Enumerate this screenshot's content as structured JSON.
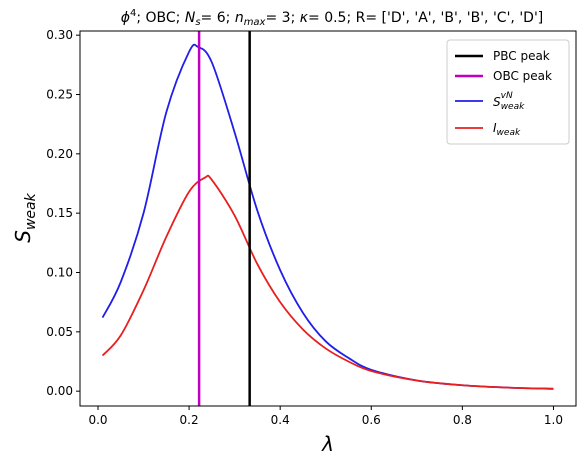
{
  "chart_data": {
    "type": "line",
    "title": {
      "phi": "ϕ",
      "phi_sup": "4",
      "seg1": "; OBC; ",
      "ns_main": "N",
      "ns_sub": "s",
      "seg2": "= 6; ",
      "nmax_main": "n",
      "nmax_sub": "max",
      "seg3": "= 3; ",
      "kappa": "κ",
      "seg4": "= 0.5; R= ['D', 'A', 'B', 'B', 'C', 'D']"
    },
    "xlabel": "λ",
    "ylabel": {
      "main": "S",
      "sub": "weak"
    },
    "xlim": [
      -0.0395,
      1.0495
    ],
    "ylim": [
      -0.0125,
      0.3035
    ],
    "xticks": [
      "0.0",
      "0.2",
      "0.4",
      "0.6",
      "0.8",
      "1.0"
    ],
    "yticks": [
      "0.00",
      "0.05",
      "0.10",
      "0.15",
      "0.20",
      "0.25",
      "0.30"
    ],
    "grid": false,
    "legend_position": "top-right",
    "vlines": [
      {
        "name": "PBC peak",
        "x": 0.333,
        "color": "#000000"
      },
      {
        "name": "OBC peak",
        "x": 0.222,
        "color": "#bf00bf"
      }
    ],
    "series": [
      {
        "name": {
          "main": "S",
          "sub": "weak",
          "sup": "vN"
        },
        "color": "#1f1fe8",
        "x": [
          0.01,
          0.05,
          0.1,
          0.15,
          0.2,
          0.22,
          0.25,
          0.3,
          0.35,
          0.4,
          0.45,
          0.5,
          0.55,
          0.6,
          0.7,
          0.8,
          0.9,
          1.0
        ],
        "y": [
          0.062,
          0.092,
          0.15,
          0.235,
          0.286,
          0.29,
          0.277,
          0.218,
          0.152,
          0.102,
          0.066,
          0.042,
          0.028,
          0.018,
          0.009,
          0.005,
          0.003,
          0.002
        ]
      },
      {
        "name": {
          "main": "I",
          "sub": "weak"
        },
        "color": "#e81f1f",
        "x": [
          0.01,
          0.05,
          0.1,
          0.15,
          0.2,
          0.235,
          0.25,
          0.3,
          0.35,
          0.4,
          0.45,
          0.5,
          0.55,
          0.6,
          0.7,
          0.8,
          0.9,
          1.0
        ],
        "y": [
          0.03,
          0.047,
          0.085,
          0.13,
          0.168,
          0.18,
          0.178,
          0.148,
          0.107,
          0.075,
          0.052,
          0.036,
          0.025,
          0.017,
          0.009,
          0.005,
          0.003,
          0.002
        ]
      }
    ]
  }
}
